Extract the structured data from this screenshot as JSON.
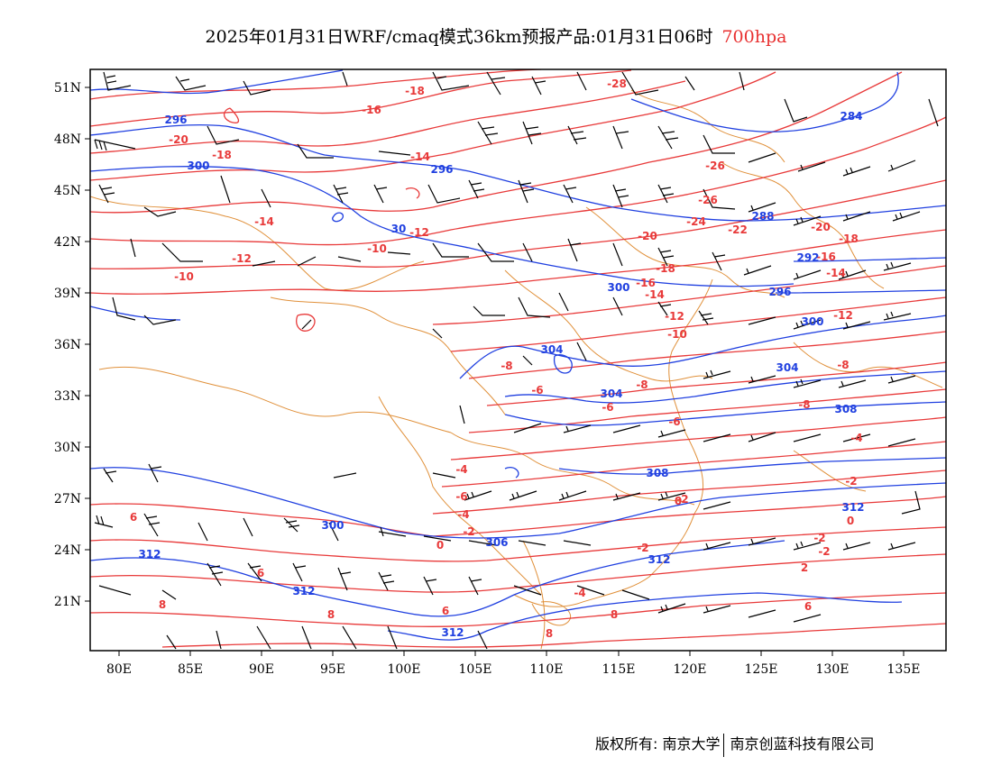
{
  "title": {
    "main": "2025年01月31日WRF/cmaq模式36km预报产品:01月31日06时",
    "level": "700hpa"
  },
  "axes": {
    "y_labels": [
      "51N",
      "48N",
      "45N",
      "42N",
      "39N",
      "36N",
      "33N",
      "30N",
      "27N",
      "24N",
      "21N"
    ],
    "x_labels": [
      "80E",
      "85E",
      "90E",
      "95E",
      "100E",
      "105E",
      "110E",
      "115E",
      "120E",
      "125E",
      "130E",
      "135E"
    ]
  },
  "colors": {
    "temperature": "#e83a3a",
    "height": "#2040e0",
    "boundary": "#e0903a",
    "wind": "#000000"
  },
  "temp_labels": [
    "-18",
    "-16",
    "-20",
    "-18",
    "-14",
    "-14",
    "-12",
    "-10",
    "-12",
    "-10",
    "-28",
    "-26",
    "-26",
    "-24",
    "-22",
    "-20",
    "-20",
    "-18",
    "-16",
    "-18",
    "-14",
    "-16",
    "-14",
    "-12",
    "-12",
    "-10",
    "-8",
    "-8",
    "-6",
    "-8",
    "-6",
    "-8",
    "-6",
    "-4",
    "-4",
    "-6",
    "-4",
    "-2",
    "-2",
    "-2",
    "0",
    "0",
    "-2",
    "-2",
    "0",
    "-2",
    "2",
    "-4",
    "6",
    "6",
    "6",
    "8",
    "8",
    "8",
    "8",
    "6"
  ],
  "height_labels": [
    "296",
    "300",
    "296",
    "30",
    "284",
    "288",
    "292",
    "300",
    "296",
    "300",
    "304",
    "304",
    "304",
    "308",
    "308",
    "312",
    "312",
    "300",
    "306",
    "312",
    "312",
    "312"
  ],
  "footer": {
    "left": "版权所有: 南京大学",
    "right": "南京创蓝科技有限公司"
  }
}
